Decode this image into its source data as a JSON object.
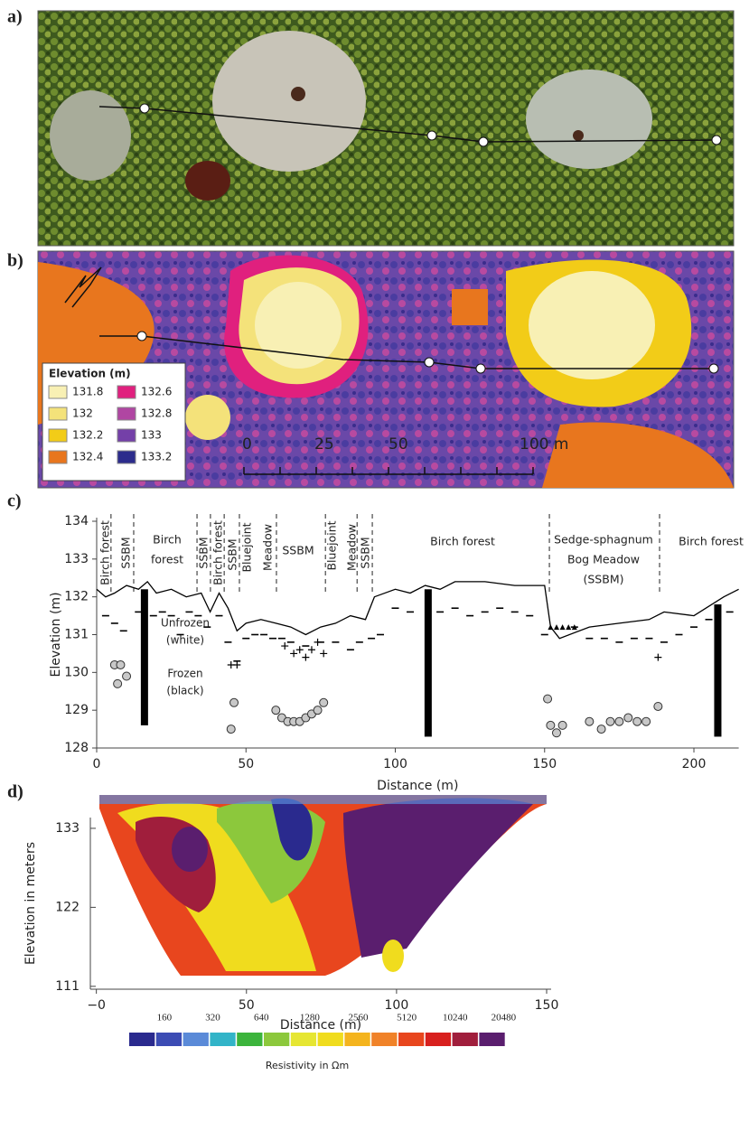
{
  "panels": {
    "a": {
      "label": "a)"
    },
    "b": {
      "label": "b)",
      "legend": {
        "title": "Elevation (m)",
        "entries": [
          {
            "value": 131.8,
            "color": "#f8f0b4"
          },
          {
            "value": 132,
            "color": "#f4e27a"
          },
          {
            "value": 132.2,
            "color": "#f2cc18"
          },
          {
            "value": 132.4,
            "color": "#e8761e"
          },
          {
            "value": 132.6,
            "color": "#e0207e"
          },
          {
            "value": 132.8,
            "color": "#b046a2"
          },
          {
            "value": 133,
            "color": "#7440a8"
          },
          {
            "value": 133.2,
            "color": "#2c2c8c"
          }
        ]
      },
      "scale_bar": [
        "0",
        "25",
        "50",
        "100 m"
      ]
    }
  },
  "chart_data": [
    {
      "type": "line",
      "label": "c)",
      "xlabel": "Distance (m)",
      "ylabel": "Elevation (m)",
      "xlim": [
        0,
        215
      ],
      "ylim": [
        128,
        134
      ],
      "xticks": [
        0,
        50,
        100,
        150,
        200
      ],
      "yticks": [
        128,
        129,
        130,
        131,
        132,
        133,
        134
      ],
      "zone_boundaries": [
        4.8,
        12.4,
        33.6,
        38.1,
        42.7,
        47.8,
        60.2,
        76.6,
        87.2,
        92.3,
        151.6,
        188.5
      ],
      "zone_labels": [
        [
          "Birch forest"
        ],
        [
          "SSBM"
        ],
        [
          "Birch",
          "forest"
        ],
        [
          "SSBM"
        ],
        [
          "Birch forest"
        ],
        [
          "SSBM"
        ],
        [
          "Bluejoint"
        ],
        [
          "Meadow"
        ],
        [
          "SSBM"
        ],
        [
          "Bluejoint"
        ],
        [
          "Meadow"
        ],
        [
          "SSBM"
        ],
        [
          "Birch forest"
        ],
        [
          "Sedge-sphagnum",
          "Bog Meadow",
          "(SSBM)"
        ],
        [
          "Birch forest"
        ]
      ],
      "annotations": [
        [
          "Unfrozen",
          "(white)"
        ],
        [
          "Frozen",
          "(black)"
        ]
      ],
      "series": [
        {
          "style": "line",
          "color": "#000000",
          "x": [
            0,
            3,
            6,
            10,
            14,
            17,
            20,
            25,
            30,
            35,
            38,
            41,
            44,
            47,
            50,
            55,
            60,
            65,
            70,
            75,
            80,
            85,
            90,
            93,
            100,
            105,
            110,
            115,
            120,
            130,
            140,
            150,
            152,
            155,
            165,
            175,
            185,
            190,
            200,
            210,
            215
          ],
          "values": [
            132.2,
            132.0,
            132.1,
            132.3,
            132.2,
            132.4,
            132.1,
            132.2,
            132.0,
            132.1,
            131.6,
            132.1,
            131.7,
            131.1,
            131.3,
            131.4,
            131.3,
            131.2,
            131.0,
            131.2,
            131.3,
            131.5,
            131.4,
            132.0,
            132.2,
            132.1,
            132.3,
            132.2,
            132.4,
            132.4,
            132.3,
            132.3,
            131.2,
            130.9,
            131.2,
            131.3,
            131.4,
            131.6,
            131.5,
            132.0,
            132.2
          ]
        },
        {
          "style": "dash",
          "color": "#000000",
          "x": [
            3,
            6,
            9,
            14,
            19,
            22,
            25,
            28,
            31,
            34,
            37,
            41,
            44,
            47,
            50,
            53,
            56,
            59,
            62,
            65,
            70,
            75,
            80,
            85,
            88,
            92,
            95,
            100,
            105,
            115,
            120,
            125,
            130,
            135,
            140,
            145,
            150,
            160,
            165,
            170,
            175,
            180,
            185,
            190,
            195,
            200,
            205,
            212
          ],
          "values": [
            131.5,
            131.3,
            131.1,
            131.6,
            131.5,
            131.6,
            131.5,
            131.0,
            131.6,
            131.5,
            131.2,
            131.5,
            130.8,
            130.3,
            130.9,
            131.0,
            131.0,
            130.9,
            130.9,
            130.8,
            130.7,
            130.8,
            130.8,
            130.6,
            130.8,
            130.9,
            131.0,
            131.7,
            131.6,
            131.6,
            131.7,
            131.5,
            131.6,
            131.7,
            131.6,
            131.5,
            131.0,
            131.2,
            130.9,
            130.9,
            130.8,
            130.9,
            130.9,
            130.8,
            131.0,
            131.2,
            131.4,
            131.6
          ]
        },
        {
          "style": "triangle",
          "color": "#000000",
          "x": [
            152,
            154,
            156,
            158,
            160
          ],
          "values": [
            131.2,
            131.2,
            131.2,
            131.2,
            131.2
          ]
        },
        {
          "style": "plus",
          "color": "#000000",
          "x": [
            45,
            47,
            63,
            66,
            68,
            70,
            72,
            74,
            76,
            188
          ],
          "values": [
            130.2,
            130.2,
            130.7,
            130.5,
            130.6,
            130.4,
            130.6,
            130.8,
            130.5,
            130.4
          ]
        },
        {
          "style": "circle",
          "color": "#c8c8c8",
          "x": [
            6,
            8,
            10,
            7,
            45,
            46,
            60,
            62,
            64,
            66,
            68,
            70,
            72,
            74,
            76,
            151,
            152,
            154,
            156,
            165,
            169,
            172,
            175,
            178,
            181,
            184,
            188
          ],
          "values": [
            130.2,
            130.2,
            129.9,
            129.7,
            128.5,
            129.2,
            129.0,
            128.8,
            128.7,
            128.7,
            128.7,
            128.8,
            128.9,
            129.0,
            129.2,
            129.3,
            128.6,
            128.4,
            128.6,
            128.7,
            128.5,
            128.7,
            128.7,
            128.8,
            128.7,
            128.7,
            129.1
          ]
        }
      ],
      "boreholes": {
        "x": [
          16,
          111,
          208
        ],
        "bottom": [
          128.6,
          128.3,
          128.3
        ],
        "top": [
          132.2,
          132.2,
          131.8
        ]
      }
    },
    {
      "type": "contour",
      "label": "d)",
      "xlabel": "Distance (m)",
      "ylabel": "Elevation in meters",
      "xlim": [
        -2,
        151.5
      ],
      "ylim": [
        110.6,
        134.5
      ],
      "xticks": [
        {
          "value": 0,
          "label": "−0"
        },
        50,
        100,
        150
      ],
      "yticks": [
        111,
        122,
        133
      ],
      "colorbar": {
        "label": "Resistivity in Ωm",
        "ticks": [
          160,
          320,
          640,
          1280,
          2560,
          5120,
          10240,
          20480
        ],
        "colors": [
          "#2a2a8e",
          "#3c4cb4",
          "#5a8ad8",
          "#32b4c8",
          "#3cb43c",
          "#8cc83c",
          "#e6e632",
          "#f0dc1e",
          "#f4b41e",
          "#f08228",
          "#e8461e",
          "#d8201e",
          "#a01e3c",
          "#5a1e6e"
        ]
      }
    }
  ]
}
